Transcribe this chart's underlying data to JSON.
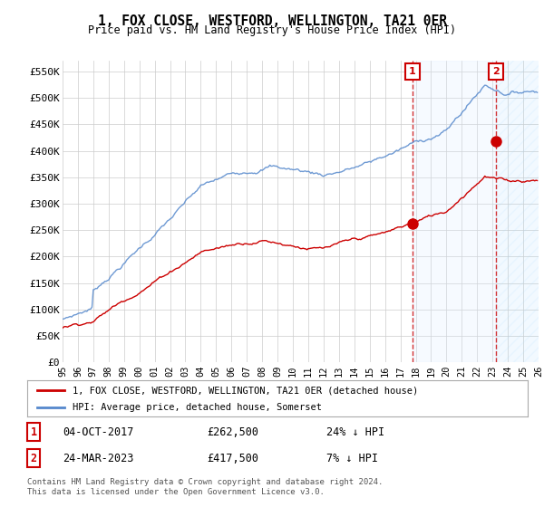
{
  "title": "1, FOX CLOSE, WESTFORD, WELLINGTON, TA21 0ER",
  "subtitle": "Price paid vs. HM Land Registry's House Price Index (HPI)",
  "ylabel_ticks": [
    "£0",
    "£50K",
    "£100K",
    "£150K",
    "£200K",
    "£250K",
    "£300K",
    "£350K",
    "£400K",
    "£450K",
    "£500K",
    "£550K"
  ],
  "ytick_values": [
    0,
    50000,
    100000,
    150000,
    200000,
    250000,
    300000,
    350000,
    400000,
    450000,
    500000,
    550000
  ],
  "ylim": [
    0,
    570000
  ],
  "x_start_year": 1995,
  "x_end_year": 2026,
  "hpi_color": "#5588cc",
  "price_color": "#cc0000",
  "sale1_date": "04-OCT-2017",
  "sale1_price": 262500,
  "sale1_year": 2017.79,
  "sale1_label": "1",
  "sale1_pct": "24% ↓ HPI",
  "sale2_date": "24-MAR-2023",
  "sale2_price": 417500,
  "sale2_year": 2023.23,
  "sale2_label": "2",
  "sale2_pct": "7% ↓ HPI",
  "legend_label1": "1, FOX CLOSE, WESTFORD, WELLINGTON, TA21 0ER (detached house)",
  "legend_label2": "HPI: Average price, detached house, Somerset",
  "footer": "Contains HM Land Registry data © Crown copyright and database right 2024.\nThis data is licensed under the Open Government Licence v3.0.",
  "background_color": "#ffffff",
  "plot_bg_color": "#ffffff",
  "grid_color": "#cccccc",
  "shade_between_color": "#ddeeff",
  "vline_color": "#cc0000",
  "annotation_box_color": "#cc0000",
  "hatch_color": "#aaaaaa"
}
